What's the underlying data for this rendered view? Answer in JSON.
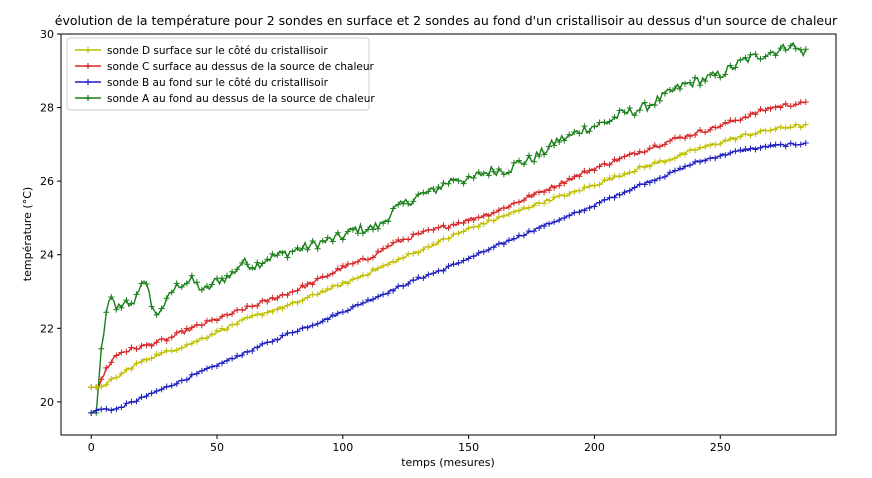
{
  "chart_data": {
    "type": "line",
    "title": "évolution de la température pour 2 sondes en surface et 2 sondes au fond d'un cristallisoir au dessus d'un source de chaleur",
    "xlabel": "temps (mesures)",
    "ylabel": "température (°C)",
    "xlim": [
      -12,
      296
    ],
    "ylim": [
      19.1,
      30
    ],
    "x_ticks": [
      0,
      50,
      100,
      150,
      200,
      250
    ],
    "y_ticks": [
      20,
      22,
      24,
      26,
      28,
      30
    ],
    "grid": false,
    "legend_position": "top-left",
    "marker": "+",
    "series": [
      {
        "name": "sonde D surface sur le côté du cristallisoir",
        "color": "#bfbf00",
        "points": [
          [
            0,
            20.4
          ],
          [
            3,
            20.4
          ],
          [
            6,
            20.5
          ],
          [
            10,
            20.65
          ],
          [
            15,
            20.9
          ],
          [
            20,
            21.1
          ],
          [
            25,
            21.25
          ],
          [
            30,
            21.35
          ],
          [
            40,
            21.6
          ],
          [
            50,
            21.9
          ],
          [
            60,
            22.2
          ],
          [
            70,
            22.45
          ],
          [
            80,
            22.65
          ],
          [
            90,
            22.95
          ],
          [
            100,
            23.2
          ],
          [
            110,
            23.5
          ],
          [
            120,
            23.8
          ],
          [
            130,
            24.1
          ],
          [
            140,
            24.4
          ],
          [
            150,
            24.7
          ],
          [
            160,
            24.95
          ],
          [
            170,
            25.2
          ],
          [
            180,
            25.45
          ],
          [
            190,
            25.65
          ],
          [
            200,
            25.9
          ],
          [
            210,
            26.15
          ],
          [
            220,
            26.4
          ],
          [
            230,
            26.6
          ],
          [
            240,
            26.85
          ],
          [
            250,
            27.05
          ],
          [
            260,
            27.25
          ],
          [
            270,
            27.4
          ],
          [
            280,
            27.5
          ],
          [
            284,
            27.5
          ]
        ],
        "noise": 0.05
      },
      {
        "name": "sonde C surface au dessus de la source de chaleur",
        "color": "#d62728",
        "points": [
          [
            0,
            20.4
          ],
          [
            3,
            20.4
          ],
          [
            6,
            20.9
          ],
          [
            9,
            21.2
          ],
          [
            12,
            21.35
          ],
          [
            20,
            21.5
          ],
          [
            30,
            21.7
          ],
          [
            40,
            22.0
          ],
          [
            50,
            22.25
          ],
          [
            60,
            22.5
          ],
          [
            70,
            22.75
          ],
          [
            80,
            23.0
          ],
          [
            90,
            23.3
          ],
          [
            100,
            23.65
          ],
          [
            110,
            23.9
          ],
          [
            120,
            24.3
          ],
          [
            130,
            24.55
          ],
          [
            140,
            24.75
          ],
          [
            150,
            24.95
          ],
          [
            160,
            25.15
          ],
          [
            170,
            25.45
          ],
          [
            180,
            25.75
          ],
          [
            190,
            26.05
          ],
          [
            200,
            26.35
          ],
          [
            210,
            26.6
          ],
          [
            220,
            26.85
          ],
          [
            230,
            27.1
          ],
          [
            240,
            27.3
          ],
          [
            250,
            27.5
          ],
          [
            260,
            27.75
          ],
          [
            270,
            28.0
          ],
          [
            280,
            28.1
          ],
          [
            284,
            28.1
          ]
        ],
        "noise": 0.06
      },
      {
        "name": "sonde B au fond sur le côté du cristallisoir",
        "color": "#1f1fbf",
        "points": [
          [
            0,
            19.7
          ],
          [
            3,
            19.8
          ],
          [
            10,
            19.8
          ],
          [
            15,
            19.95
          ],
          [
            20,
            20.1
          ],
          [
            30,
            20.4
          ],
          [
            40,
            20.7
          ],
          [
            50,
            21.0
          ],
          [
            60,
            21.3
          ],
          [
            70,
            21.6
          ],
          [
            80,
            21.9
          ],
          [
            90,
            22.15
          ],
          [
            100,
            22.45
          ],
          [
            110,
            22.75
          ],
          [
            120,
            23.05
          ],
          [
            130,
            23.35
          ],
          [
            140,
            23.6
          ],
          [
            150,
            23.9
          ],
          [
            160,
            24.2
          ],
          [
            170,
            24.5
          ],
          [
            180,
            24.8
          ],
          [
            190,
            25.05
          ],
          [
            200,
            25.35
          ],
          [
            210,
            25.65
          ],
          [
            220,
            25.95
          ],
          [
            230,
            26.2
          ],
          [
            240,
            26.5
          ],
          [
            250,
            26.7
          ],
          [
            260,
            26.85
          ],
          [
            270,
            26.95
          ],
          [
            280,
            27.0
          ],
          [
            284,
            27.05
          ]
        ],
        "noise": 0.04
      },
      {
        "name": "sonde A au fond au dessus de la source de chaleur",
        "color": "#1a7f1a",
        "points": [
          [
            0,
            19.7
          ],
          [
            2,
            19.7
          ],
          [
            4,
            21.4
          ],
          [
            6,
            22.4
          ],
          [
            8,
            22.8
          ],
          [
            10,
            22.6
          ],
          [
            12,
            22.5
          ],
          [
            14,
            22.7
          ],
          [
            16,
            22.6
          ],
          [
            18,
            22.9
          ],
          [
            20,
            23.3
          ],
          [
            22,
            23.1
          ],
          [
            24,
            22.7
          ],
          [
            26,
            22.3
          ],
          [
            28,
            22.6
          ],
          [
            30,
            22.7
          ],
          [
            32,
            23.0
          ],
          [
            35,
            23.2
          ],
          [
            40,
            23.3
          ],
          [
            45,
            23.0
          ],
          [
            50,
            23.3
          ],
          [
            55,
            23.4
          ],
          [
            60,
            23.8
          ],
          [
            65,
            23.7
          ],
          [
            70,
            23.9
          ],
          [
            75,
            24.0
          ],
          [
            80,
            24.1
          ],
          [
            85,
            24.2
          ],
          [
            90,
            24.3
          ],
          [
            95,
            24.4
          ],
          [
            100,
            24.5
          ],
          [
            105,
            24.7
          ],
          [
            110,
            24.7
          ],
          [
            115,
            24.8
          ],
          [
            120,
            25.2
          ],
          [
            125,
            25.4
          ],
          [
            130,
            25.6
          ],
          [
            135,
            25.7
          ],
          [
            140,
            25.9
          ],
          [
            145,
            26.1
          ],
          [
            150,
            26.0
          ],
          [
            155,
            26.2
          ],
          [
            160,
            26.3
          ],
          [
            165,
            26.3
          ],
          [
            170,
            26.5
          ],
          [
            175,
            26.6
          ],
          [
            180,
            26.8
          ],
          [
            185,
            27.1
          ],
          [
            190,
            27.2
          ],
          [
            195,
            27.4
          ],
          [
            200,
            27.5
          ],
          [
            205,
            27.6
          ],
          [
            210,
            27.8
          ],
          [
            215,
            27.9
          ],
          [
            220,
            28.0
          ],
          [
            225,
            28.2
          ],
          [
            230,
            28.4
          ],
          [
            235,
            28.6
          ],
          [
            240,
            28.7
          ],
          [
            245,
            28.8
          ],
          [
            250,
            28.9
          ],
          [
            255,
            29.1
          ],
          [
            260,
            29.3
          ],
          [
            265,
            29.4
          ],
          [
            270,
            29.5
          ],
          [
            275,
            29.6
          ],
          [
            278,
            29.75
          ],
          [
            280,
            29.6
          ],
          [
            284,
            29.5
          ]
        ],
        "noise": 0.14
      }
    ]
  }
}
